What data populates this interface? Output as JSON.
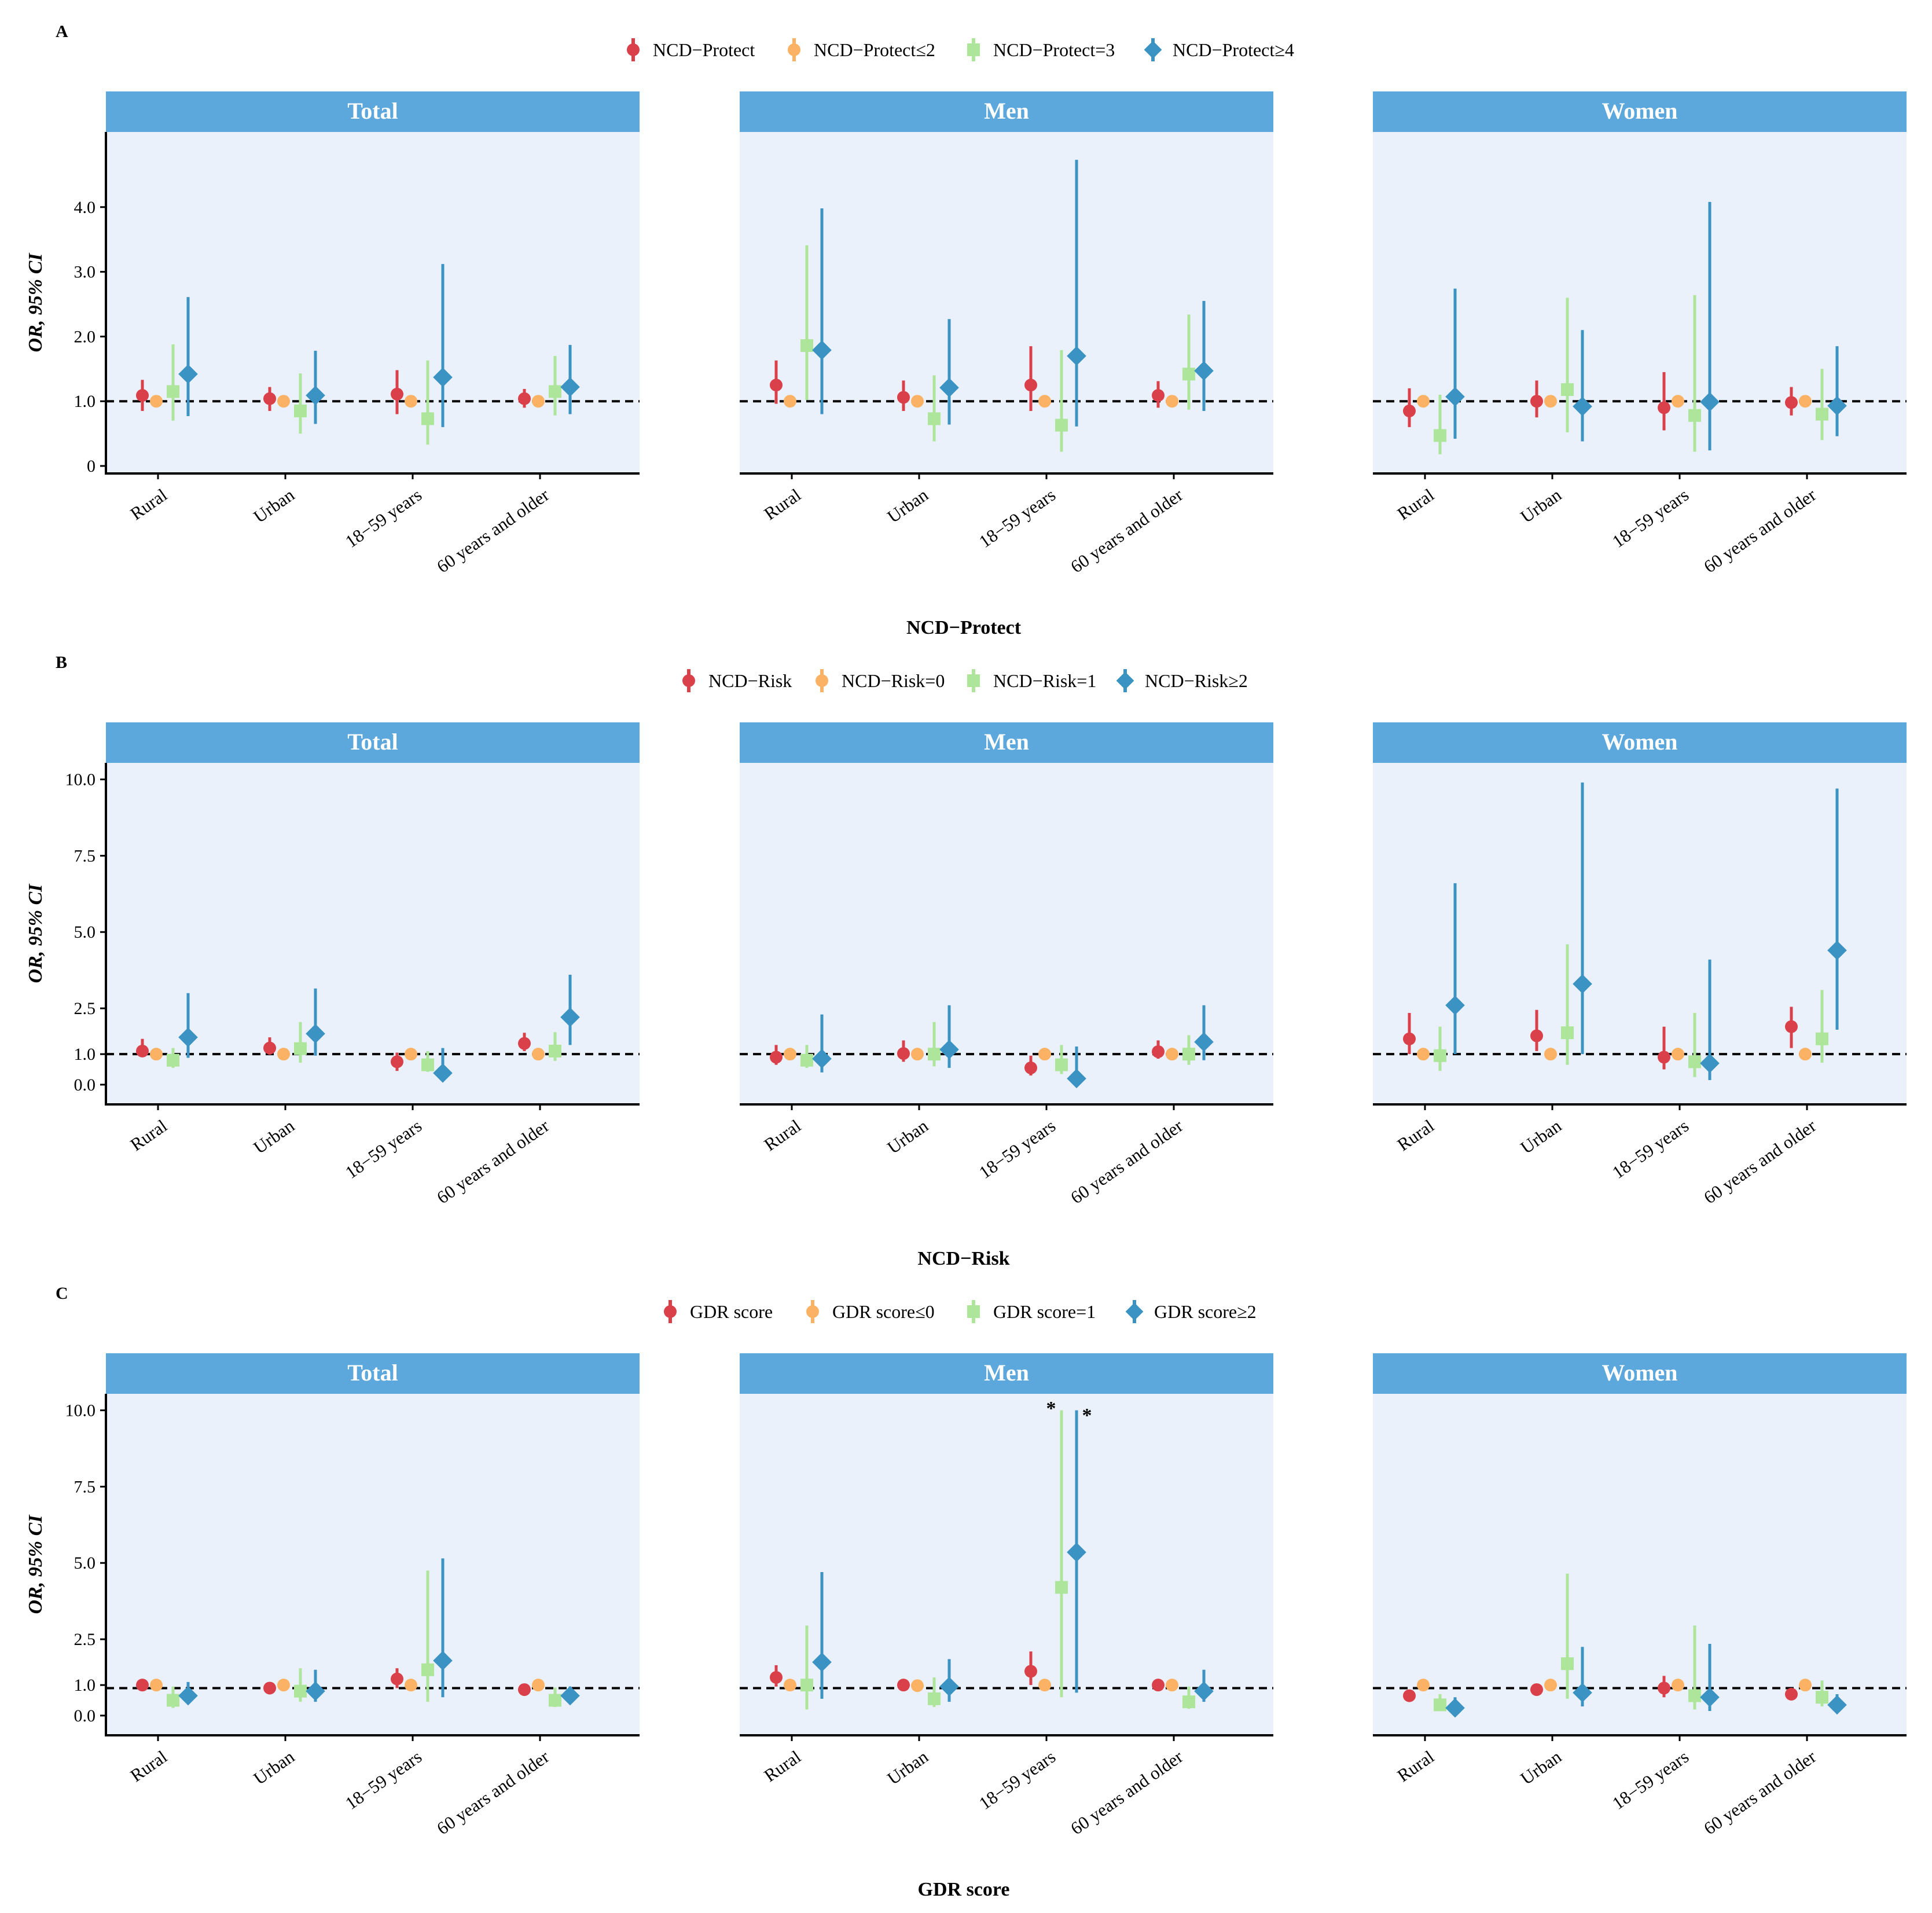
{
  "figure": {
    "x_categories": [
      "Rural",
      "Urban",
      "18−59 years",
      "60 years and older"
    ],
    "y_axis_label": "OR, 95% CI"
  },
  "chart_data": [
    {
      "panel_letter": "A",
      "type": "scatter",
      "title": "NCD−Protect",
      "xlabel": "NCD−Protect",
      "ylabel": "OR, 95% CI",
      "ylim": [
        0,
        5
      ],
      "yticks": [
        0,
        1,
        2,
        3,
        4
      ],
      "ytick_labels": [
        "0",
        "1.0",
        "2.0",
        "3.0",
        "4.0"
      ],
      "reference_line": 1.0,
      "legend": [
        "NCD−Protect",
        "NCD−Protect≤2",
        "NCD−Protect=3",
        "NCD−Protect≥4"
      ],
      "subplots": [
        {
          "facet": "Total",
          "annotations": [],
          "series": [
            {
              "name": "NCD−Protect",
              "est": [
                1.09,
                1.04,
                1.11,
                1.04
              ],
              "lo": [
                0.85,
                0.85,
                0.8,
                0.9
              ],
              "hi": [
                1.33,
                1.22,
                1.48,
                1.19
              ]
            },
            {
              "name": "NCD−Protect≤2",
              "est": [
                1.0,
                1.0,
                1.0,
                1.0
              ],
              "lo": [
                1.0,
                1.0,
                1.0,
                1.0
              ],
              "hi": [
                1.0,
                1.0,
                1.0,
                1.0
              ]
            },
            {
              "name": "NCD−Protect=3",
              "est": [
                1.15,
                0.85,
                0.73,
                1.15
              ],
              "lo": [
                0.7,
                0.5,
                0.33,
                0.78
              ],
              "hi": [
                1.88,
                1.43,
                1.63,
                1.7
              ]
            },
            {
              "name": "NCD−Protect≥4",
              "est": [
                1.42,
                1.09,
                1.37,
                1.22
              ],
              "lo": [
                0.77,
                0.65,
                0.6,
                0.8
              ],
              "hi": [
                2.61,
                1.78,
                3.12,
                1.87
              ]
            }
          ]
        },
        {
          "facet": "Men",
          "annotations": [],
          "series": [
            {
              "name": "NCD−Protect",
              "est": [
                1.25,
                1.06,
                1.25,
                1.09
              ],
              "lo": [
                0.96,
                0.85,
                0.85,
                0.9
              ],
              "hi": [
                1.63,
                1.32,
                1.85,
                1.31
              ]
            },
            {
              "name": "NCD−Protect≤2",
              "est": [
                1.0,
                1.0,
                1.0,
                1.0
              ],
              "lo": [
                1.0,
                1.0,
                1.0,
                1.0
              ],
              "hi": [
                1.0,
                1.0,
                1.0,
                1.0
              ]
            },
            {
              "name": "NCD−Protect=3",
              "est": [
                1.86,
                0.73,
                0.63,
                1.42
              ],
              "lo": [
                1.02,
                0.38,
                0.22,
                0.87
              ],
              "hi": [
                3.41,
                1.4,
                1.79,
                2.34
              ]
            },
            {
              "name": "NCD−Protect≥4",
              "est": [
                1.79,
                1.21,
                1.7,
                1.47
              ],
              "lo": [
                0.8,
                0.64,
                0.61,
                0.85
              ],
              "hi": [
                3.98,
                2.27,
                4.73,
                2.55
              ]
            }
          ]
        },
        {
          "facet": "Women",
          "annotations": [],
          "series": [
            {
              "name": "NCD−Protect",
              "est": [
                0.85,
                1.0,
                0.9,
                0.98
              ],
              "lo": [
                0.6,
                0.75,
                0.55,
                0.78
              ],
              "hi": [
                1.2,
                1.32,
                1.45,
                1.22
              ]
            },
            {
              "name": "NCD−Protect≤2",
              "est": [
                1.0,
                1.0,
                1.0,
                1.0
              ],
              "lo": [
                1.0,
                1.0,
                1.0,
                1.0
              ],
              "hi": [
                1.0,
                1.0,
                1.0,
                1.0
              ]
            },
            {
              "name": "NCD−Protect=3",
              "est": [
                0.47,
                1.18,
                0.78,
                0.8
              ],
              "lo": [
                0.18,
                0.52,
                0.22,
                0.4
              ],
              "hi": [
                1.1,
                2.6,
                2.64,
                1.5
              ]
            },
            {
              "name": "NCD−Protect≥4",
              "est": [
                1.07,
                0.92,
                0.99,
                0.93
              ],
              "lo": [
                0.42,
                0.38,
                0.24,
                0.46
              ],
              "hi": [
                2.74,
                2.1,
                4.08,
                1.85
              ]
            }
          ]
        }
      ]
    },
    {
      "panel_letter": "B",
      "type": "scatter",
      "title": "NCD−Risk",
      "xlabel": "NCD−Risk",
      "ylabel": "OR, 95% CI",
      "ylim": [
        -0.4,
        10.2
      ],
      "yticks": [
        0,
        1,
        2.5,
        5,
        7.5,
        10
      ],
      "ytick_labels": [
        "0.0",
        "1.0",
        "2.5",
        "5.0",
        "7.5",
        "10.0"
      ],
      "reference_line": 1.0,
      "legend": [
        "NCD−Risk",
        "NCD−Risk=0",
        "NCD−Risk=1",
        "NCD−Risk≥2"
      ],
      "subplots": [
        {
          "facet": "Total",
          "annotations": [],
          "series": [
            {
              "name": "NCD−Risk",
              "est": [
                1.1,
                1.2,
                0.75,
                1.35
              ],
              "lo": [
                0.92,
                0.98,
                0.45,
                1.1
              ],
              "hi": [
                1.5,
                1.55,
                1.05,
                1.7
              ]
            },
            {
              "name": "NCD−Risk=0",
              "est": [
                1.0,
                1.0,
                1.0,
                1.0
              ],
              "lo": [
                1.0,
                1.0,
                1.0,
                1.0
              ],
              "hi": [
                1.0,
                1.0,
                1.0,
                1.0
              ]
            },
            {
              "name": "NCD−Risk=1",
              "est": [
                0.8,
                1.18,
                0.65,
                1.1
              ],
              "lo": [
                0.55,
                0.72,
                0.42,
                0.78
              ],
              "hi": [
                1.2,
                2.05,
                1.1,
                1.72
              ]
            },
            {
              "name": "NCD−Risk≥2",
              "est": [
                1.55,
                1.67,
                0.38,
                2.21
              ],
              "lo": [
                0.88,
                0.95,
                0.15,
                1.3
              ],
              "hi": [
                3.0,
                3.15,
                1.2,
                3.6
              ]
            }
          ]
        },
        {
          "facet": "Men",
          "annotations": [],
          "series": [
            {
              "name": "NCD−Risk",
              "est": [
                0.9,
                1.02,
                0.55,
                1.08
              ],
              "lo": [
                0.65,
                0.75,
                0.3,
                0.85
              ],
              "hi": [
                1.3,
                1.45,
                0.95,
                1.45
              ]
            },
            {
              "name": "NCD−Risk=0",
              "est": [
                1.0,
                1.0,
                1.0,
                1.0
              ],
              "lo": [
                1.0,
                1.0,
                1.0,
                1.0
              ],
              "hi": [
                1.0,
                1.0,
                1.0,
                1.0
              ]
            },
            {
              "name": "NCD−Risk=1",
              "est": [
                0.8,
                1.0,
                0.65,
                1.0
              ],
              "lo": [
                0.55,
                0.6,
                0.35,
                0.65
              ],
              "hi": [
                1.3,
                2.05,
                1.3,
                1.62
              ]
            },
            {
              "name": "NCD−Risk≥2",
              "est": [
                0.85,
                1.15,
                0.2,
                1.4
              ],
              "lo": [
                0.4,
                0.55,
                0.0,
                0.8
              ],
              "hi": [
                2.3,
                2.6,
                1.25,
                2.6
              ]
            }
          ]
        },
        {
          "facet": "Women",
          "annotations": [],
          "series": [
            {
              "name": "NCD−Risk",
              "est": [
                1.5,
                1.6,
                0.9,
                1.9
              ],
              "lo": [
                1.0,
                1.1,
                0.5,
                1.2
              ],
              "hi": [
                2.35,
                2.45,
                1.9,
                2.55
              ]
            },
            {
              "name": "NCD−Risk=0",
              "est": [
                1.0,
                1.0,
                1.0,
                1.0
              ],
              "lo": [
                1.0,
                1.0,
                1.0,
                1.0
              ],
              "hi": [
                1.0,
                1.0,
                1.0,
                1.0
              ]
            },
            {
              "name": "NCD−Risk=1",
              "est": [
                0.95,
                1.7,
                0.75,
                1.5
              ],
              "lo": [
                0.45,
                0.65,
                0.25,
                0.72
              ],
              "hi": [
                1.9,
                4.6,
                2.35,
                3.1
              ]
            },
            {
              "name": "NCD−Risk≥2",
              "est": [
                2.6,
                3.3,
                0.7,
                4.4
              ],
              "lo": [
                1.0,
                1.0,
                0.15,
                1.8
              ],
              "hi": [
                6.6,
                9.9,
                4.1,
                9.7
              ]
            }
          ]
        }
      ]
    },
    {
      "panel_letter": "C",
      "type": "scatter",
      "title": "GDR score",
      "xlabel": "GDR score",
      "ylabel": "OR, 95% CI",
      "ylim": [
        -0.4,
        10.2
      ],
      "yticks": [
        0,
        1,
        2.5,
        5,
        7.5,
        10
      ],
      "ytick_labels": [
        "0.0",
        "1.0",
        "2.5",
        "5.0",
        "7.5",
        "10.0"
      ],
      "reference_line": 0.9,
      "legend": [
        "GDR score",
        "GDR score≤0",
        "GDR score=1",
        "GDR score≥2"
      ],
      "subplots": [
        {
          "facet": "Total",
          "annotations": [],
          "series": [
            {
              "name": "GDR score",
              "est": [
                1.0,
                0.9,
                1.2,
                0.85
              ],
              "lo": [
                0.85,
                0.78,
                0.9,
                0.72
              ],
              "hi": [
                1.18,
                1.05,
                1.55,
                1.0
              ]
            },
            {
              "name": "GDR score≤0",
              "est": [
                1.0,
                1.0,
                1.0,
                1.0
              ],
              "lo": [
                1.0,
                1.0,
                1.0,
                1.0
              ],
              "hi": [
                1.0,
                1.0,
                1.0,
                1.0
              ]
            },
            {
              "name": "GDR score=1",
              "est": [
                0.5,
                0.8,
                1.5,
                0.5
              ],
              "lo": [
                0.25,
                0.45,
                0.45,
                0.28
              ],
              "hi": [
                0.95,
                1.55,
                4.75,
                0.92
              ]
            },
            {
              "name": "GDR score≥2",
              "est": [
                0.65,
                0.8,
                1.8,
                0.65
              ],
              "lo": [
                0.4,
                0.45,
                0.6,
                0.42
              ],
              "hi": [
                1.1,
                1.5,
                5.15,
                0.95
              ]
            }
          ]
        },
        {
          "facet": "Men",
          "annotations": [
            "*",
            "*"
          ],
          "series": [
            {
              "name": "GDR score",
              "est": [
                1.25,
                1.0,
                1.45,
                1.0
              ],
              "lo": [
                0.95,
                0.82,
                1.0,
                0.85
              ],
              "hi": [
                1.65,
                1.18,
                2.1,
                1.2
              ]
            },
            {
              "name": "GDR score≤0",
              "est": [
                1.0,
                0.98,
                1.0,
                1.0
              ],
              "lo": [
                1.0,
                0.98,
                1.0,
                1.0
              ],
              "hi": [
                1.0,
                0.98,
                1.0,
                1.0
              ]
            },
            {
              "name": "GDR score=1",
              "est": [
                1.0,
                0.55,
                4.2,
                0.45
              ],
              "lo": [
                0.2,
                0.28,
                0.6,
                0.22
              ],
              "hi": [
                2.95,
                1.25,
                10.0,
                0.95
              ]
            },
            {
              "name": "GDR score≥2",
              "est": [
                1.75,
                0.95,
                5.35,
                0.8
              ],
              "lo": [
                0.55,
                0.45,
                0.75,
                0.45
              ],
              "hi": [
                4.7,
                1.85,
                10.0,
                1.5
              ]
            }
          ]
        },
        {
          "facet": "Women",
          "annotations": [],
          "series": [
            {
              "name": "GDR score",
              "est": [
                0.65,
                0.85,
                0.9,
                0.7
              ],
              "lo": [
                0.5,
                0.7,
                0.6,
                0.55
              ],
              "hi": [
                0.85,
                1.02,
                1.3,
                0.88
              ]
            },
            {
              "name": "GDR score≤0",
              "est": [
                1.0,
                1.0,
                1.0,
                1.0
              ],
              "lo": [
                1.0,
                1.0,
                1.0,
                1.0
              ],
              "hi": [
                1.0,
                1.0,
                1.0,
                1.0
              ]
            },
            {
              "name": "GDR score=1",
              "est": [
                0.35,
                1.7,
                0.65,
                0.6
              ],
              "lo": [
                0.15,
                0.55,
                0.2,
                0.3
              ],
              "hi": [
                0.7,
                4.65,
                2.95,
                1.15
              ]
            },
            {
              "name": "GDR score≥2",
              "est": [
                0.25,
                0.75,
                0.6,
                0.35
              ],
              "lo": [
                0.08,
                0.3,
                0.15,
                0.12
              ],
              "hi": [
                0.6,
                2.25,
                2.35,
                0.7
              ]
            }
          ]
        }
      ]
    }
  ],
  "colors": {
    "series": [
      "#d9404a",
      "#fbb264",
      "#ade59a",
      "#3a93c3"
    ],
    "facet_header": "#5ca7db",
    "panel_background": "#eaf1fa",
    "axis": "#000000"
  },
  "markers": [
    "circle",
    "circle",
    "square",
    "diamond"
  ]
}
